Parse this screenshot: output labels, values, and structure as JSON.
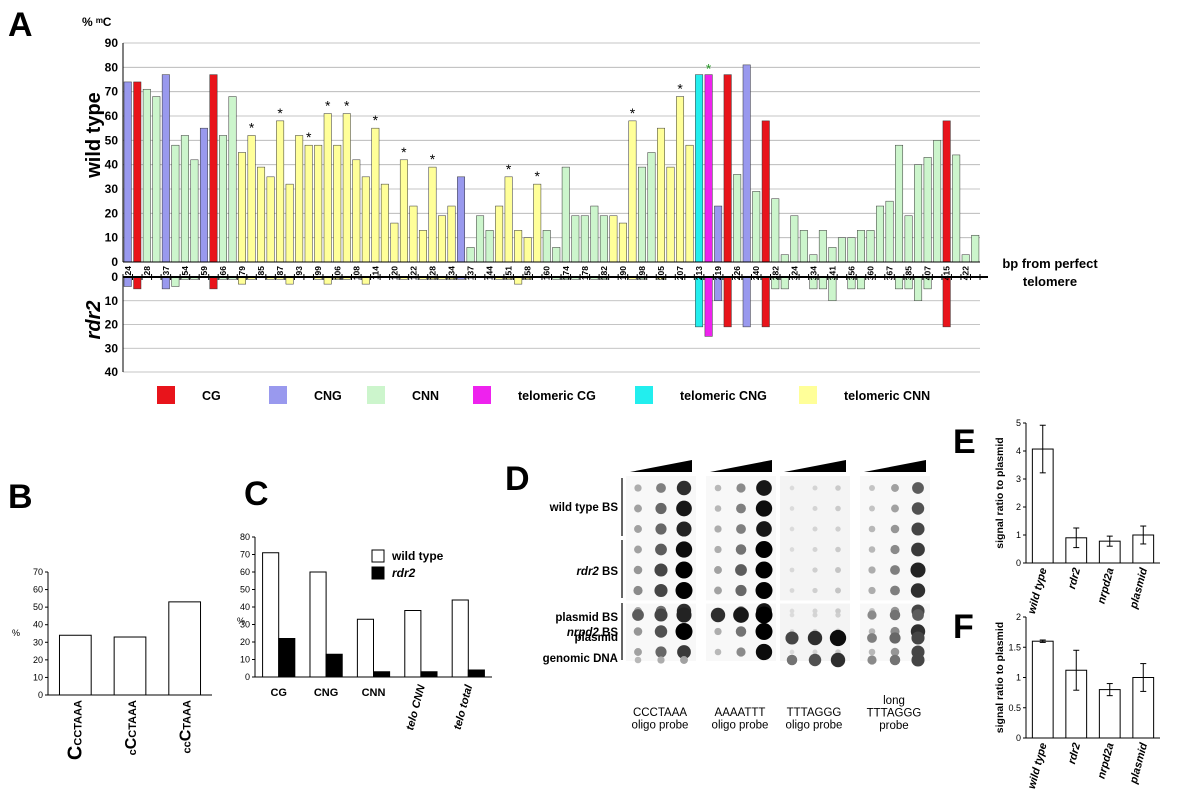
{
  "panel_letters": [
    "A",
    "B",
    "C",
    "D",
    "E",
    "F"
  ],
  "colors": {
    "CG": "#e8141b",
    "CNG": "#9999ee",
    "CNN": "#ccf5cc",
    "telomeric CG": "#ee22ee",
    "telomeric CNG": "#22eeee",
    "telomeric CNN": "#ffff99",
    "star_green": "#2a9a2a",
    "gridline": "#b0b0b0"
  },
  "chart_data": [
    {
      "panel": "A",
      "type": "bar",
      "ylabel_units": "% ᵐC",
      "ylabel_top": "wild type",
      "ylabel_bottom": "rdr2",
      "xlabel": "bp from perfect telomere",
      "ylim_top": [
        0,
        90
      ],
      "yticks_top": [
        0,
        10,
        20,
        30,
        40,
        50,
        60,
        70,
        80,
        90
      ],
      "ylim_bottom": [
        0,
        40
      ],
      "yticks_bottom": [
        0,
        10,
        20,
        30,
        40
      ],
      "grid": true,
      "legend_position": "bottom",
      "legend": [
        "CG",
        "CNG",
        "CNN",
        "telomeric CG",
        "telomeric CNG",
        "telomeric CNN"
      ],
      "tick_labels": [
        "24",
        "28",
        "37",
        "54",
        "59",
        "66",
        "79",
        "85",
        "87",
        "93",
        "99",
        "106",
        "108",
        "114",
        "120",
        "122",
        "128",
        "134",
        "137",
        "144",
        "151",
        "158",
        "160",
        "174",
        "178",
        "182",
        "190",
        "198",
        "205",
        "207",
        "213",
        "219",
        "226",
        "240",
        "282",
        "324",
        "334",
        "341",
        "356",
        "360",
        "367",
        "385",
        "407",
        "415",
        "422"
      ],
      "bars": [
        {
          "wt": 74,
          "rdr2": 4,
          "ctx": "CNG"
        },
        {
          "wt": 74,
          "rdr2": 5,
          "ctx": "CG"
        },
        {
          "wt": 71,
          "rdr2": 0,
          "ctx": "CNN"
        },
        {
          "wt": 68,
          "rdr2": 0,
          "ctx": "CNN"
        },
        {
          "wt": 77,
          "rdr2": 5,
          "ctx": "CNG"
        },
        {
          "wt": 48,
          "rdr2": 4,
          "ctx": "CNN"
        },
        {
          "wt": 52,
          "rdr2": 1,
          "ctx": "CNN"
        },
        {
          "wt": 42,
          "rdr2": 1,
          "ctx": "CNN"
        },
        {
          "wt": 55,
          "rdr2": 0,
          "ctx": "CNG"
        },
        {
          "wt": 77,
          "rdr2": 5,
          "ctx": "CG"
        },
        {
          "wt": 52,
          "rdr2": 1,
          "ctx": "CNN"
        },
        {
          "wt": 68,
          "rdr2": 1,
          "ctx": "CNN"
        },
        {
          "wt": 45,
          "rdr2": 3,
          "ctx": "telomeric CNN"
        },
        {
          "wt": 52,
          "rdr2": 1,
          "ctx": "telomeric CNN",
          "star": true
        },
        {
          "wt": 39,
          "rdr2": 0,
          "ctx": "telomeric CNN"
        },
        {
          "wt": 35,
          "rdr2": 1,
          "ctx": "telomeric CNN"
        },
        {
          "wt": 58,
          "rdr2": 1,
          "ctx": "telomeric CNN",
          "star": true
        },
        {
          "wt": 32,
          "rdr2": 3,
          "ctx": "telomeric CNN"
        },
        {
          "wt": 52,
          "rdr2": 0,
          "ctx": "telomeric CNN"
        },
        {
          "wt": 48,
          "rdr2": 0,
          "ctx": "telomeric CNN",
          "star": true
        },
        {
          "wt": 48,
          "rdr2": 1,
          "ctx": "telomeric CNN"
        },
        {
          "wt": 61,
          "rdr2": 3,
          "ctx": "telomeric CNN",
          "star": true
        },
        {
          "wt": 48,
          "rdr2": 1,
          "ctx": "telomeric CNN"
        },
        {
          "wt": 61,
          "rdr2": 1,
          "ctx": "telomeric CNN",
          "star": true
        },
        {
          "wt": 42,
          "rdr2": 0,
          "ctx": "telomeric CNN"
        },
        {
          "wt": 35,
          "rdr2": 3,
          "ctx": "telomeric CNN"
        },
        {
          "wt": 55,
          "rdr2": 0,
          "ctx": "telomeric CNN",
          "star": true
        },
        {
          "wt": 32,
          "rdr2": 0,
          "ctx": "telomeric CNN"
        },
        {
          "wt": 16,
          "rdr2": 0,
          "ctx": "telomeric CNN"
        },
        {
          "wt": 42,
          "rdr2": 1,
          "ctx": "telomeric CNN",
          "star": true
        },
        {
          "wt": 23,
          "rdr2": 0,
          "ctx": "telomeric CNN"
        },
        {
          "wt": 13,
          "rdr2": 1,
          "ctx": "telomeric CNN"
        },
        {
          "wt": 39,
          "rdr2": 1,
          "ctx": "telomeric CNN",
          "star": true
        },
        {
          "wt": 19,
          "rdr2": 1,
          "ctx": "telomeric CNN"
        },
        {
          "wt": 23,
          "rdr2": 1,
          "ctx": "telomeric CNN"
        },
        {
          "wt": 35,
          "rdr2": 1,
          "ctx": "CNG"
        },
        {
          "wt": 6,
          "rdr2": 0,
          "ctx": "CNN"
        },
        {
          "wt": 19,
          "rdr2": 0,
          "ctx": "CNN"
        },
        {
          "wt": 13,
          "rdr2": 0,
          "ctx": "CNN"
        },
        {
          "wt": 23,
          "rdr2": 1,
          "ctx": "telomeric CNN"
        },
        {
          "wt": 35,
          "rdr2": 1,
          "ctx": "telomeric CNN",
          "star": true
        },
        {
          "wt": 13,
          "rdr2": 3,
          "ctx": "telomeric CNN"
        },
        {
          "wt": 10,
          "rdr2": 1,
          "ctx": "telomeric CNN"
        },
        {
          "wt": 32,
          "rdr2": 0,
          "ctx": "telomeric CNN",
          "star": true
        },
        {
          "wt": 13,
          "rdr2": 0,
          "ctx": "CNN"
        },
        {
          "wt": 6,
          "rdr2": 1,
          "ctx": "CNN"
        },
        {
          "wt": 39,
          "rdr2": 1,
          "ctx": "CNN"
        },
        {
          "wt": 19,
          "rdr2": 1,
          "ctx": "CNN"
        },
        {
          "wt": 19,
          "rdr2": 0,
          "ctx": "CNN"
        },
        {
          "wt": 23,
          "rdr2": 1,
          "ctx": "CNN"
        },
        {
          "wt": 19,
          "rdr2": 1,
          "ctx": "CNN"
        },
        {
          "wt": 19,
          "rdr2": 0,
          "ctx": "telomeric CNN"
        },
        {
          "wt": 16,
          "rdr2": 0,
          "ctx": "telomeric CNN"
        },
        {
          "wt": 58,
          "rdr2": 1,
          "ctx": "telomeric CNN",
          "star": true
        },
        {
          "wt": 39,
          "rdr2": 1,
          "ctx": "CNN"
        },
        {
          "wt": 45,
          "rdr2": 0,
          "ctx": "CNN"
        },
        {
          "wt": 55,
          "rdr2": 1,
          "ctx": "telomeric CNN"
        },
        {
          "wt": 39,
          "rdr2": 0,
          "ctx": "telomeric CNN"
        },
        {
          "wt": 68,
          "rdr2": 0,
          "ctx": "telomeric CNN",
          "star": true
        },
        {
          "wt": 48,
          "rdr2": 0,
          "ctx": "telomeric CNN"
        },
        {
          "wt": 77,
          "rdr2": 21,
          "ctx": "telomeric CNG"
        },
        {
          "wt": 77,
          "rdr2": 25,
          "ctx": "telomeric CG",
          "star_green": true
        },
        {
          "wt": 23,
          "rdr2": 10,
          "ctx": "CNG"
        },
        {
          "wt": 77,
          "rdr2": 21,
          "ctx": "CG"
        },
        {
          "wt": 36,
          "rdr2": 0,
          "ctx": "CNN"
        },
        {
          "wt": 81,
          "rdr2": 21,
          "ctx": "CNG"
        },
        {
          "wt": 29,
          "rdr2": 0,
          "ctx": "CNN"
        },
        {
          "wt": 58,
          "rdr2": 21,
          "ctx": "CG"
        },
        {
          "wt": 26,
          "rdr2": 5,
          "ctx": "CNN"
        },
        {
          "wt": 3,
          "rdr2": 5,
          "ctx": "CNN"
        },
        {
          "wt": 19,
          "rdr2": 0,
          "ctx": "CNN"
        },
        {
          "wt": 13,
          "rdr2": 0,
          "ctx": "CNN"
        },
        {
          "wt": 3,
          "rdr2": 5,
          "ctx": "CNN"
        },
        {
          "wt": 13,
          "rdr2": 5,
          "ctx": "CNN"
        },
        {
          "wt": 6,
          "rdr2": 10,
          "ctx": "CNN"
        },
        {
          "wt": 10,
          "rdr2": 0,
          "ctx": "CNN"
        },
        {
          "wt": 10,
          "rdr2": 5,
          "ctx": "CNN"
        },
        {
          "wt": 13,
          "rdr2": 5,
          "ctx": "CNN"
        },
        {
          "wt": 13,
          "rdr2": 0,
          "ctx": "CNN"
        },
        {
          "wt": 23,
          "rdr2": 0,
          "ctx": "CNN"
        },
        {
          "wt": 25,
          "rdr2": 0,
          "ctx": "CNN"
        },
        {
          "wt": 48,
          "rdr2": 5,
          "ctx": "CNN"
        },
        {
          "wt": 19,
          "rdr2": 5,
          "ctx": "CNN"
        },
        {
          "wt": 40,
          "rdr2": 10,
          "ctx": "CNN"
        },
        {
          "wt": 43,
          "rdr2": 5,
          "ctx": "CNN"
        },
        {
          "wt": 50,
          "rdr2": 0,
          "ctx": "CNN"
        },
        {
          "wt": 58,
          "rdr2": 21,
          "ctx": "CG"
        },
        {
          "wt": 44,
          "rdr2": 0,
          "ctx": "CNN"
        },
        {
          "wt": 3,
          "rdr2": 0,
          "ctx": "CNN"
        },
        {
          "wt": 11,
          "rdr2": 0,
          "ctx": "CNN"
        }
      ]
    },
    {
      "panel": "B",
      "type": "bar",
      "ylabel": "%",
      "ylim": [
        0,
        70
      ],
      "yticks": [
        0,
        10,
        20,
        30,
        40,
        50,
        60,
        70
      ],
      "categories": [
        {
          "parts": [
            [
              "C",
              20,
              "bold"
            ],
            [
              "CCTAAA",
              11,
              "bold"
            ]
          ]
        },
        {
          "parts": [
            [
              "c",
              11,
              "bold"
            ],
            [
              "C",
              16,
              "bold"
            ],
            [
              "CTAAA",
              11,
              "bold"
            ]
          ]
        },
        {
          "parts": [
            [
              "cc",
              11,
              "bold"
            ],
            [
              "C",
              16,
              "bold"
            ],
            [
              "TAAA",
              11,
              "bold"
            ]
          ]
        }
      ],
      "values": [
        34,
        33,
        53
      ]
    },
    {
      "panel": "C",
      "type": "bar",
      "ylabel": "%",
      "ylim": [
        0,
        80
      ],
      "yticks": [
        0,
        10,
        20,
        30,
        40,
        50,
        60,
        70,
        80
      ],
      "categories": [
        "CG",
        "CNG",
        "CNN",
        "telo CNN",
        "telo total"
      ],
      "legend_position": "top-right",
      "series": [
        {
          "name": "wild type",
          "values": [
            71,
            60,
            33,
            38,
            44
          ],
          "color": "#ffffff"
        },
        {
          "name": "rdr2",
          "values": [
            22,
            13,
            3,
            3,
            4
          ],
          "color": "#000000"
        }
      ]
    },
    {
      "panel": "E",
      "type": "bar",
      "ylabel": "signal ratio to plasmid",
      "ylim": [
        0,
        5
      ],
      "yticks": [
        0,
        1,
        2,
        3,
        4,
        5
      ],
      "categories": [
        "wild type",
        "rdr2",
        "nrpd2a",
        "plasmid"
      ],
      "values": [
        4.07,
        0.9,
        0.78,
        1.0
      ],
      "errors": [
        0.85,
        0.35,
        0.18,
        0.32
      ]
    },
    {
      "panel": "F",
      "type": "bar",
      "ylabel": "signal ratio to plasmid",
      "ylim": [
        0,
        2
      ],
      "yticks": [
        0,
        0.5,
        1,
        1.5,
        2
      ],
      "categories": [
        "wild type",
        "rdr2",
        "nrpd2a",
        "plasmid"
      ],
      "values": [
        1.6,
        1.12,
        0.8,
        1.0
      ],
      "errors": [
        0.02,
        0.33,
        0.1,
        0.23
      ]
    }
  ],
  "blot": {
    "row_labels": [
      {
        "parts": [
          [
            "wild type BS",
            "normal"
          ]
        ]
      },
      {
        "parts": [
          [
            "rdr2",
            "italic"
          ],
          [
            " BS",
            "normal"
          ]
        ]
      },
      {
        "parts": [
          [
            "nrpd2",
            "italic"
          ],
          [
            " BS",
            "normal"
          ]
        ]
      },
      {
        "parts": [
          [
            "plasmid BS",
            "normal"
          ]
        ]
      },
      {
        "parts": [
          [
            "plasmid",
            "normal"
          ]
        ]
      },
      {
        "parts": [
          [
            "genomic DNA",
            "normal"
          ]
        ]
      }
    ],
    "probes": [
      [
        "CCCTAAA",
        "oligo probe"
      ],
      [
        "AAAATTT",
        "oligo probe"
      ],
      [
        "TTTAGGG",
        "oligo probe"
      ],
      [
        "long",
        "TTTAGGG",
        "probe"
      ]
    ],
    "intensities": [
      [
        [
          0.25,
          0.45,
          0.8
        ],
        [
          0.3,
          0.55,
          0.9
        ],
        [
          0.3,
          0.55,
          0.85
        ],
        [
          0.3,
          0.6,
          0.95
        ],
        [
          0.35,
          0.7,
          1.0
        ],
        [
          0.4,
          0.7,
          1.0
        ],
        [
          0.3,
          0.5,
          0.8
        ],
        [
          0.35,
          0.65,
          1.0
        ],
        [
          0.3,
          0.55,
          0.75
        ],
        [
          0.6,
          0.7,
          0.85
        ],
        [
          0,
          0,
          0
        ],
        [
          0.2,
          0.25,
          0.3
        ]
      ],
      [
        [
          0.2,
          0.4,
          0.9
        ],
        [
          0.2,
          0.45,
          0.95
        ],
        [
          0.25,
          0.45,
          0.9
        ],
        [
          0.25,
          0.5,
          1.0
        ],
        [
          0.3,
          0.6,
          1.0
        ],
        [
          0.3,
          0.55,
          1.0
        ],
        [
          0.2,
          0.45,
          0.9
        ],
        [
          0.25,
          0.5,
          1.0
        ],
        [
          0.2,
          0.4,
          0.95
        ],
        [
          0.8,
          0.9,
          1.0
        ],
        [
          0,
          0,
          0
        ],
        [
          0,
          0,
          0
        ]
      ],
      [
        [
          0.05,
          0.08,
          0.12
        ],
        [
          0.05,
          0.08,
          0.12
        ],
        [
          0.05,
          0.08,
          0.1
        ],
        [
          0.05,
          0.08,
          0.12
        ],
        [
          0.06,
          0.1,
          0.15
        ],
        [
          0.06,
          0.1,
          0.15
        ],
        [
          0.05,
          0.08,
          0.12
        ],
        [
          0.06,
          0.1,
          0.15
        ],
        [
          0.05,
          0.08,
          0.12
        ],
        [
          0.05,
          0.08,
          0.1
        ],
        [
          0.7,
          0.8,
          0.95
        ],
        [
          0.5,
          0.65,
          0.8
        ]
      ],
      [
        [
          0.15,
          0.3,
          0.6
        ],
        [
          0.15,
          0.3,
          0.65
        ],
        [
          0.2,
          0.35,
          0.7
        ],
        [
          0.2,
          0.4,
          0.75
        ],
        [
          0.25,
          0.45,
          0.85
        ],
        [
          0.25,
          0.45,
          0.8
        ],
        [
          0.15,
          0.35,
          0.7
        ],
        [
          0.2,
          0.4,
          0.8
        ],
        [
          0.2,
          0.35,
          0.7
        ],
        [
          0.4,
          0.5,
          0.6
        ],
        [
          0.45,
          0.55,
          0.7
        ],
        [
          0.4,
          0.5,
          0.7
        ]
      ]
    ]
  }
}
